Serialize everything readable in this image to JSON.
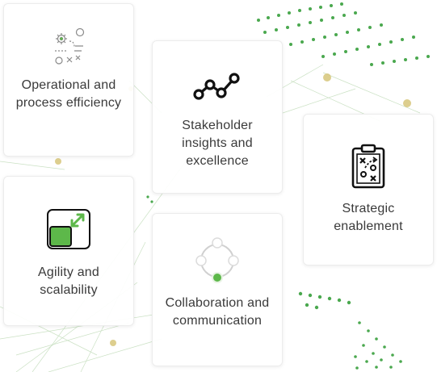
{
  "cards": [
    {
      "label": "Operational and process efficiency",
      "icon": "gears-process-icon"
    },
    {
      "label": "Stakeholder insights and excellence",
      "icon": "line-trend-icon"
    },
    {
      "label": "Strategic enablement",
      "icon": "strategy-clipboard-icon"
    },
    {
      "label": "Agility and scalability",
      "icon": "expand-scale-icon"
    },
    {
      "label": "Collaboration and communication",
      "icon": "network-circle-icon"
    }
  ],
  "colors": {
    "accent_green": "#5db84a",
    "text": "#3a3a3a",
    "card_bg": "#ffffff"
  }
}
